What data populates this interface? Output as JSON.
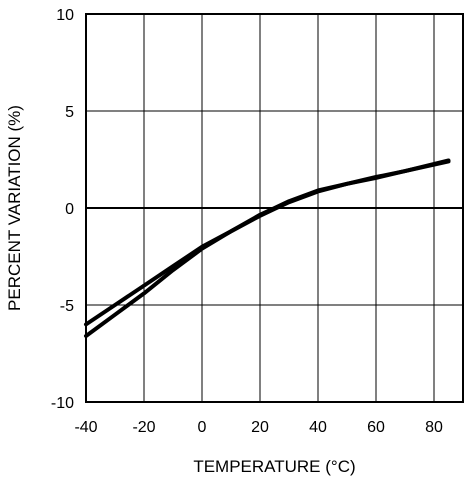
{
  "chart_data": {
    "type": "line",
    "title": "",
    "xlabel": "TEMPERATURE (°C)",
    "ylabel": "PERCENT VARIATION (%)",
    "xlim": [
      -40,
      90
    ],
    "ylim": [
      -10,
      10
    ],
    "grid": true,
    "legend": "none",
    "xticks": [
      -40,
      -20,
      0,
      20,
      40,
      60,
      80
    ],
    "xtick_labels": [
      "-40",
      "-20",
      "0",
      "20",
      "40",
      "60",
      "80"
    ],
    "yticks": [
      -10,
      -5,
      0,
      5,
      10
    ],
    "ytick_labels": [
      "-10",
      "-5",
      "0",
      "5",
      "10"
    ],
    "series": [
      {
        "x": [
          -40,
          -30,
          -20,
          -10,
          0,
          10,
          20,
          25,
          30,
          40,
          50,
          60,
          70,
          85
        ],
        "y": [
          -6.0,
          -5.0,
          -4.0,
          -3.0,
          -2.0,
          -1.2,
          -0.4,
          -0.05,
          0.3,
          0.85,
          1.25,
          1.55,
          1.9,
          2.4
        ]
      },
      {
        "x": [
          -40,
          -30,
          -20,
          -10,
          0,
          10,
          20,
          25,
          30,
          40,
          50,
          60,
          70,
          85
        ],
        "y": [
          -6.6,
          -5.5,
          -4.4,
          -3.2,
          -2.1,
          -1.2,
          -0.35,
          0.0,
          0.35,
          0.9,
          1.25,
          1.6,
          1.9,
          2.45
        ]
      }
    ],
    "line_color": "#000000"
  }
}
